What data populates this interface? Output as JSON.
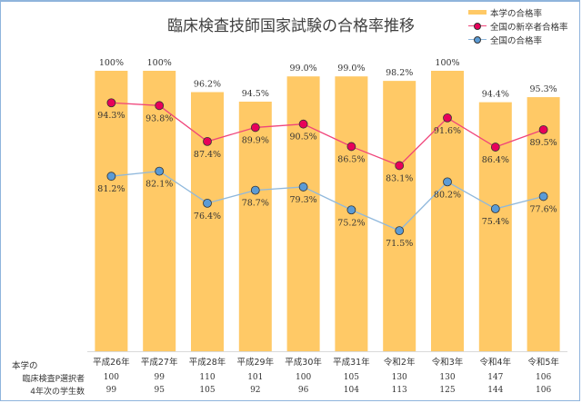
{
  "chart_data": {
    "type": "bar+line",
    "title": "臨床検査技師国家試験の合格率推移",
    "categories": [
      "平成26年",
      "平成27年",
      "平成28年",
      "平成29年",
      "平成30年",
      "平成31年",
      "令和2年",
      "令和3年",
      "令和4年",
      "令和5年"
    ],
    "ylim": [
      50,
      100
    ],
    "grid": false,
    "legend_position": "top-right",
    "series": [
      {
        "name": "本学の合格率",
        "kind": "bar",
        "color": "#ffc966",
        "values": [
          100,
          100,
          96.2,
          94.5,
          99.0,
          99.0,
          98.2,
          100,
          94.4,
          95.3
        ],
        "labels": [
          "100%",
          "100%",
          "96.2%",
          "94.5%",
          "99.0%",
          "99.0%",
          "98.2%",
          "100%",
          "94.4%",
          "95.3%"
        ]
      },
      {
        "name": "全国の新卒者合格率",
        "kind": "line",
        "color": "#f0447a",
        "marker_color": "#e8005a",
        "values": [
          94.3,
          93.8,
          87.4,
          89.9,
          90.5,
          86.5,
          83.1,
          91.6,
          86.4,
          89.5
        ],
        "labels": [
          "94.3%",
          "93.8%",
          "87.4%",
          "89.9%",
          "90.5%",
          "86.5%",
          "83.1%",
          "91.6%",
          "86.4%",
          "89.5%"
        ]
      },
      {
        "name": "全国の合格率",
        "kind": "line",
        "color": "#8fb8dc",
        "marker_color": "#5b9bd5",
        "values": [
          81.2,
          82.1,
          76.4,
          78.7,
          79.3,
          75.2,
          71.5,
          80.2,
          75.4,
          77.6
        ],
        "labels": [
          "81.2%",
          "82.1%",
          "76.4%",
          "78.7%",
          "79.3%",
          "75.2%",
          "71.5%",
          "80.2%",
          "75.4%",
          "77.6%"
        ]
      }
    ],
    "table": {
      "header_label": "本学の",
      "rows": [
        {
          "label": "臨床検査P選択者",
          "values": [
            "100",
            "99",
            "110",
            "101",
            "100",
            "105",
            "130",
            "130",
            "147",
            "106"
          ]
        },
        {
          "label": "4年次の学生数",
          "values": [
            "99",
            "95",
            "105",
            "92",
            "96",
            "104",
            "113",
            "125",
            "144",
            "106"
          ]
        }
      ]
    }
  }
}
